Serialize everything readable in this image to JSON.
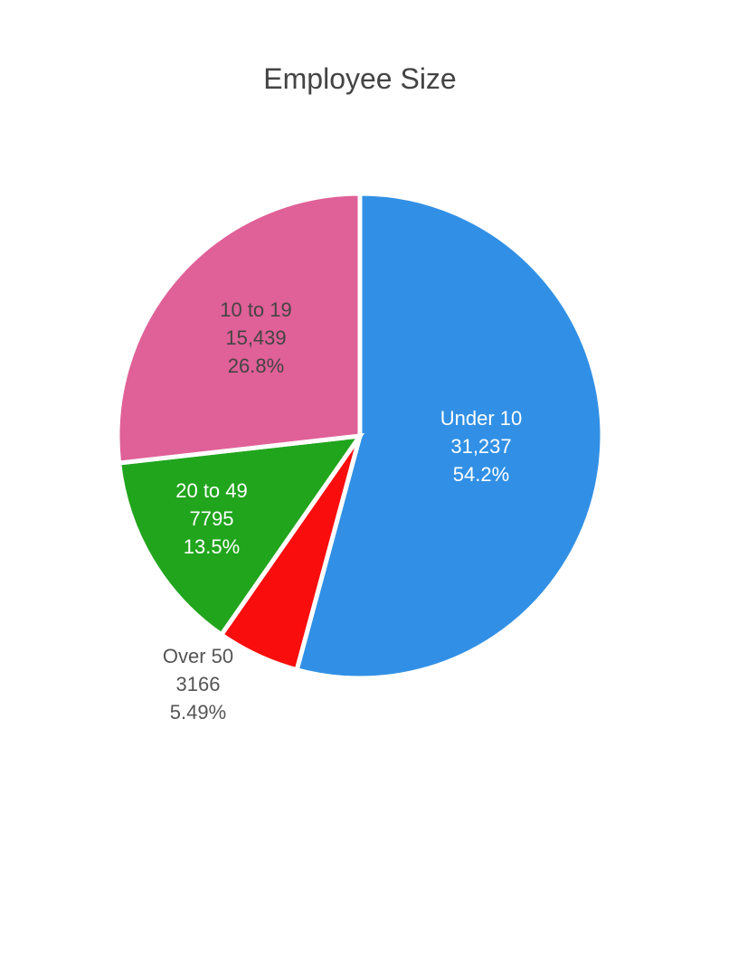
{
  "chart_data": {
    "type": "pie",
    "title": "Employee Size",
    "slices": [
      {
        "label": "Under 10",
        "value": 31237,
        "value_text": "31,237",
        "percent_text": "54.2%",
        "color": "#3190e5",
        "label_color": "#ffffff"
      },
      {
        "label": "Over 50",
        "value": 3166,
        "value_text": "3166",
        "percent_text": "5.49%",
        "color": "#f90d0d",
        "label_color": "#555555"
      },
      {
        "label": "20 to 49",
        "value": 7795,
        "value_text": "7795",
        "percent_text": "13.5%",
        "color": "#21a51d",
        "label_color": "#ffffff"
      },
      {
        "label": "10 to 19",
        "value": 15439,
        "value_text": "15,439",
        "percent_text": "26.8%",
        "color": "#e06098",
        "label_color": "#444444"
      }
    ],
    "direction": "clockwise",
    "start": "top",
    "legend": "none"
  }
}
